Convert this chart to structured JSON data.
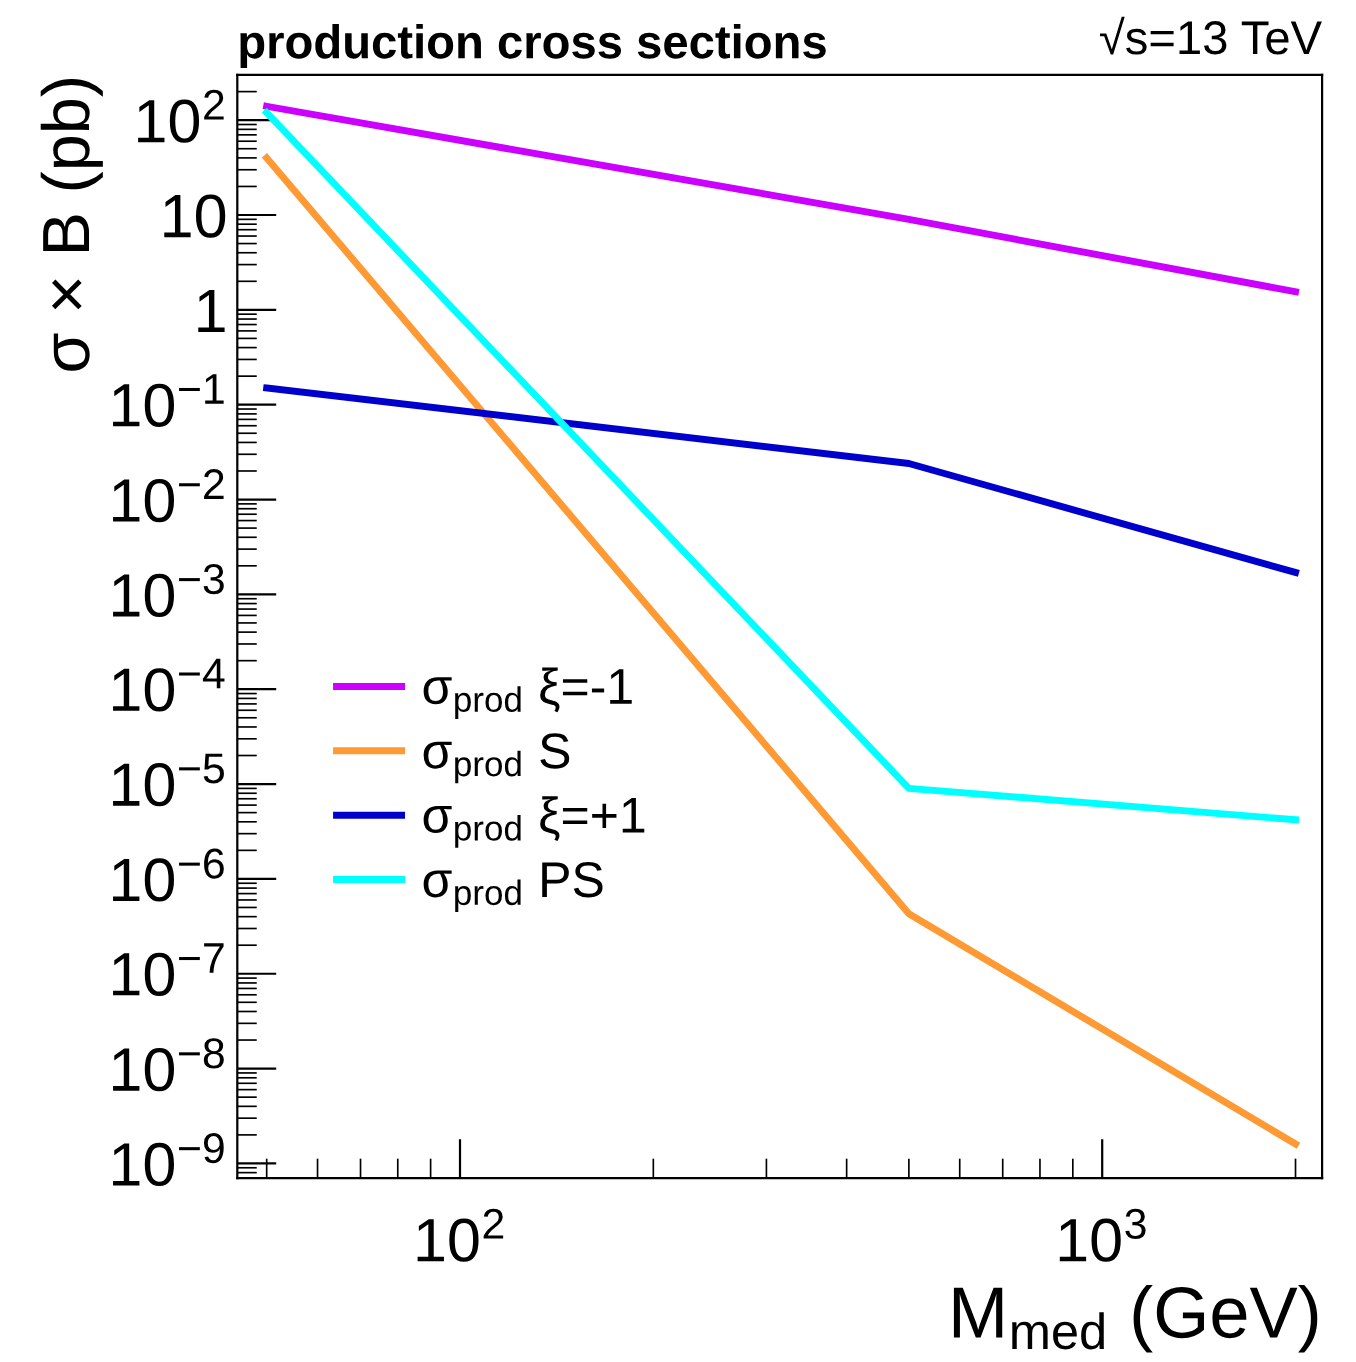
{
  "chart_data": {
    "type": "line",
    "title": "production cross sections",
    "annotations": [
      "√s=13 TeV"
    ],
    "xlabel": "M$_{med}$ (GeV)",
    "ylabel": "σ × B (pb)",
    "log": "xy",
    "x": [
      50,
      500,
      2000
    ],
    "series": [
      {
        "name": "σ$_{prod}$ ξ=-1",
        "color": "#cc00ff",
        "values": [
          140,
          9,
          1.55
        ]
      },
      {
        "name": "σ$_{prod}$ S",
        "color": "#ff9933",
        "values": [
          40,
          4.3e-07,
          1.6e-09
        ]
      },
      {
        "name": "σ$_{prod}$ ξ=+1",
        "color": "#0000cc",
        "values": [
          0.15,
          0.024,
          0.0017
        ]
      },
      {
        "name": "σ$_{prod}$ PS",
        "color": "#00ffff",
        "values": [
          120,
          9e-06,
          4.2e-06
        ]
      }
    ],
    "xlim": [
      45,
      2200
    ],
    "ylim": [
      7e-10,
      300
    ],
    "xticks": [
      {
        "value": 100,
        "label": "10$^{2}$"
      },
      {
        "value": 1000,
        "label": "10$^{3}$"
      }
    ],
    "yticks": [
      {
        "value": 1e-09,
        "label": "10$^{−9}$"
      },
      {
        "value": 1e-08,
        "label": "10$^{−8}$"
      },
      {
        "value": 1e-07,
        "label": "10$^{−7}$"
      },
      {
        "value": 1e-06,
        "label": "10$^{−6}$"
      },
      {
        "value": 1e-05,
        "label": "10$^{−5}$"
      },
      {
        "value": 0.0001,
        "label": "10$^{−4}$"
      },
      {
        "value": 0.001,
        "label": "10$^{−3}$"
      },
      {
        "value": 0.01,
        "label": "10$^{−2}$"
      },
      {
        "value": 0.1,
        "label": "10$^{−1}$"
      },
      1,
      10,
      {
        "value": 100,
        "label": "10$^{2}$"
      }
    ],
    "legend": "bottom left",
    "grid": false,
    "marker": "none",
    "line_style": "solid"
  }
}
